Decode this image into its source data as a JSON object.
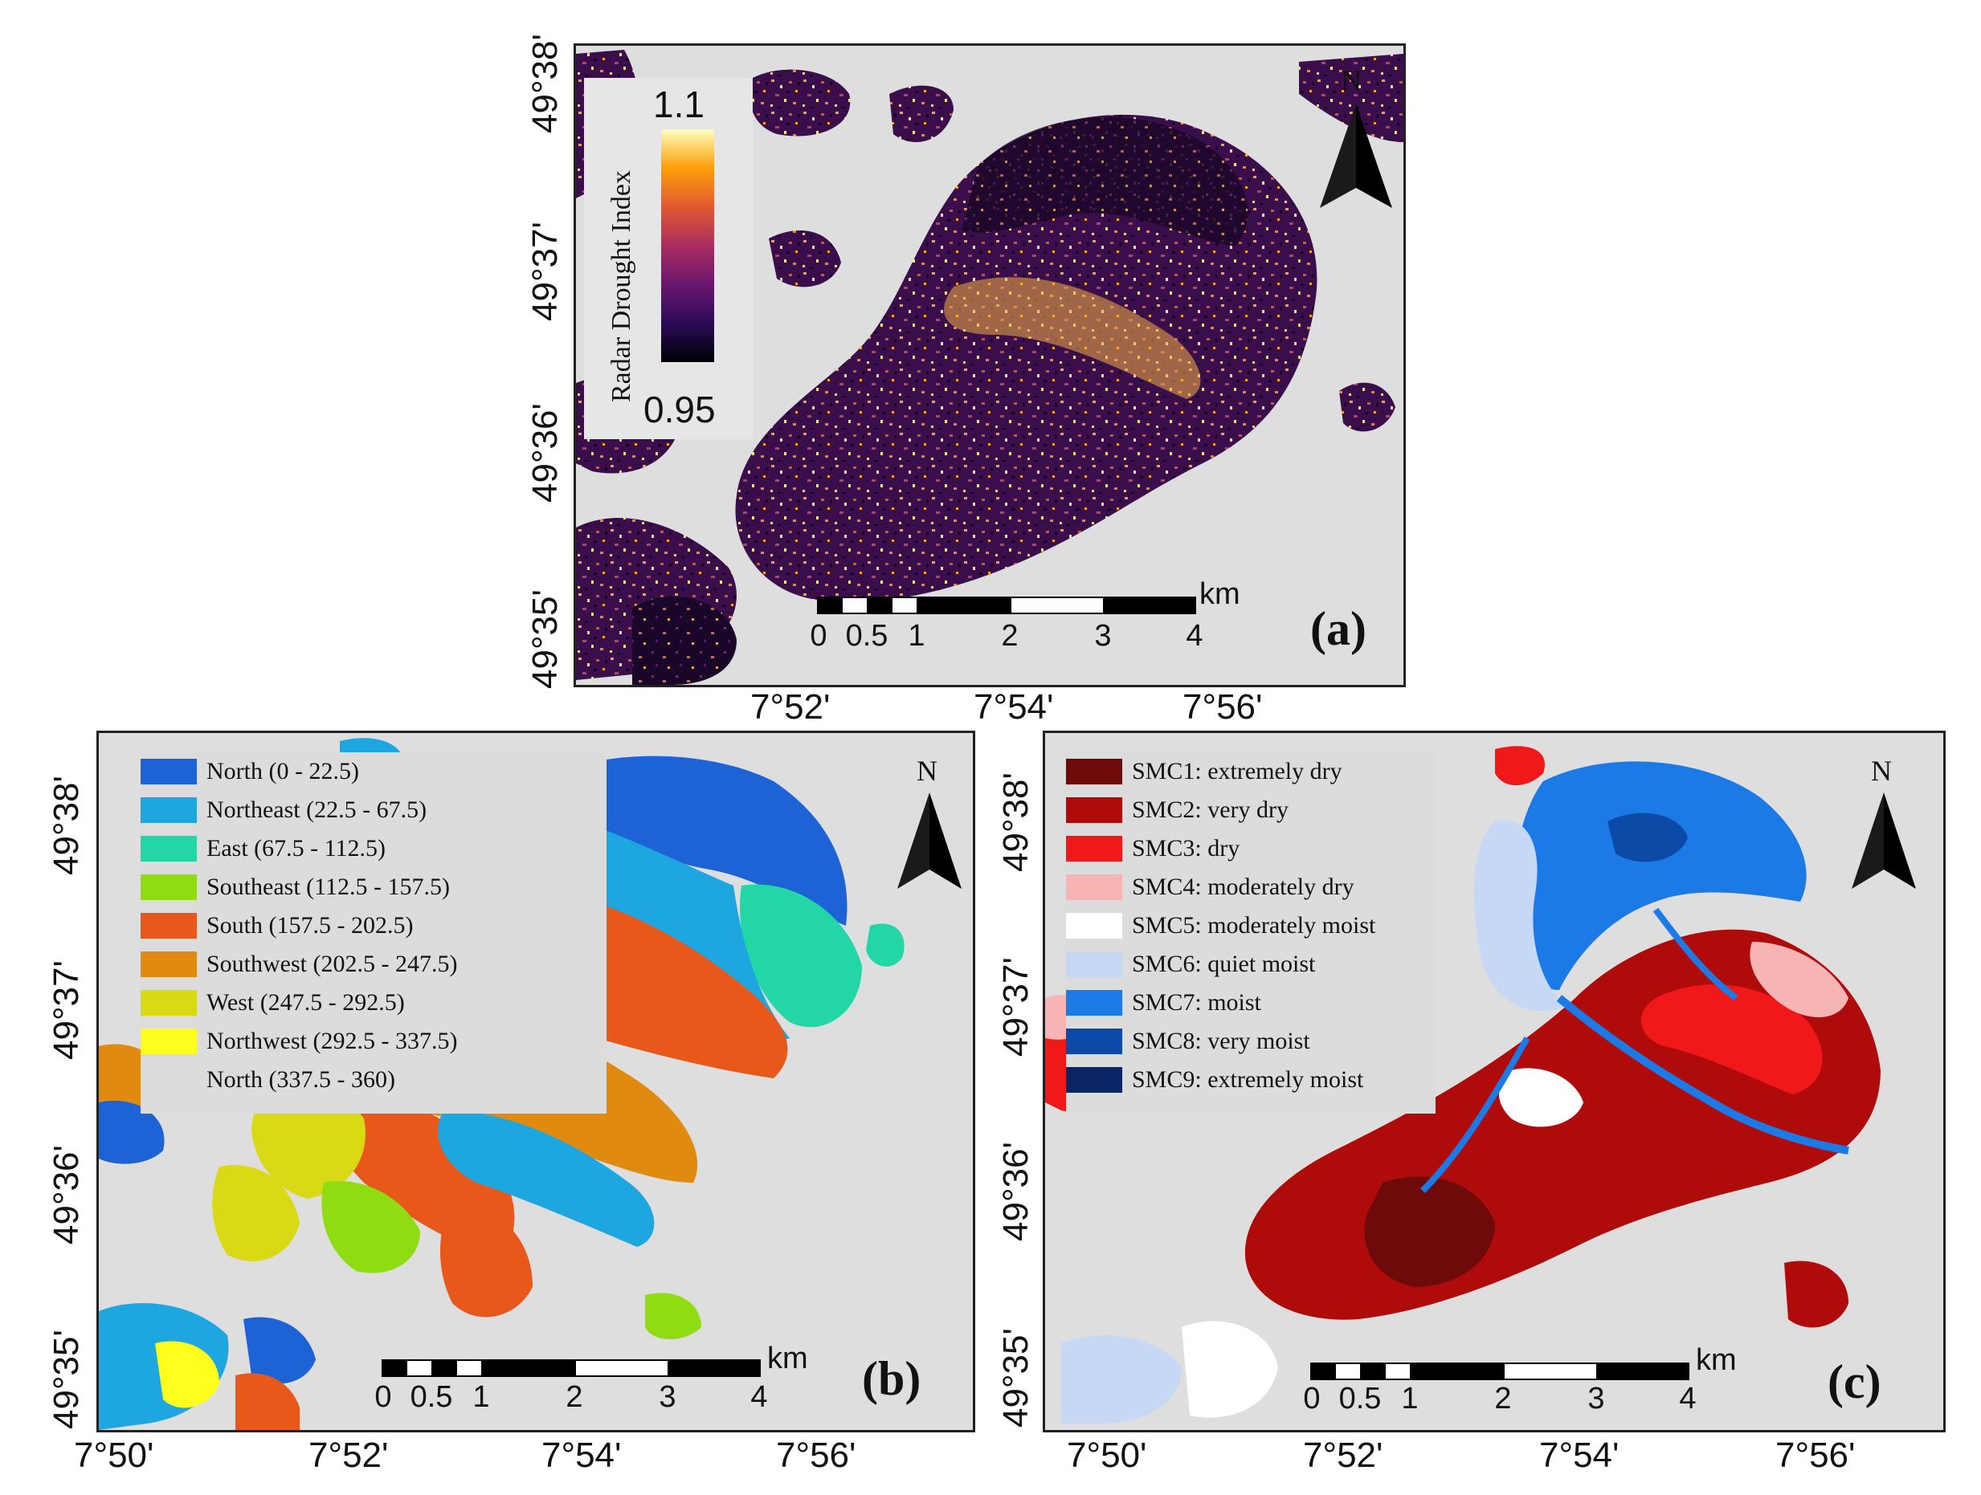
{
  "panel_a": {
    "label": "(a)",
    "north": "N",
    "colorbar": {
      "title": "Radar Drought Index",
      "max": "1.1",
      "min": "0.95",
      "colors": [
        "#fcfdbf",
        "#fc9f07",
        "#e35932",
        "#a82e5f",
        "#6a176e",
        "#2b0b56",
        "#000004"
      ]
    },
    "lat_ticks": [
      "49°38'",
      "49°37'",
      "49°36'",
      "49°35'"
    ],
    "lon_ticks": [
      "7°52'",
      "7°54'",
      "7°56'"
    ],
    "scalebar": {
      "labels": [
        "0",
        "0.5",
        "1",
        "2",
        "3",
        "4"
      ],
      "unit": "km"
    }
  },
  "panel_b": {
    "label": "(b)",
    "north": "N",
    "legend": [
      {
        "label": "North (0 - 22.5)",
        "color": "#1e63d6"
      },
      {
        "label": "Northeast (22.5 - 67.5)",
        "color": "#1ea6e0"
      },
      {
        "label": "East (67.5 - 112.5)",
        "color": "#22d6a6"
      },
      {
        "label": "Southeast (112.5 - 157.5)",
        "color": "#8fdc12"
      },
      {
        "label": "South (157.5 - 202.5)",
        "color": "#e8581a"
      },
      {
        "label": "Southwest (202.5 - 247.5)",
        "color": "#e08a10"
      },
      {
        "label": "West (247.5 - 292.5)",
        "color": "#d9d915"
      },
      {
        "label": "Northwest (292.5 - 337.5)",
        "color": "#ffff1e"
      },
      {
        "label": "North (337.5 - 360)",
        "color": "#dcdcdc"
      }
    ],
    "lat_ticks": [
      "49°38'",
      "49°37'",
      "49°36'",
      "49°35'"
    ],
    "lon_ticks": [
      "7°50'",
      "7°52'",
      "7°54'",
      "7°56'"
    ],
    "scalebar": {
      "labels": [
        "0",
        "0.5",
        "1",
        "2",
        "3",
        "4"
      ],
      "unit": "km"
    }
  },
  "panel_c": {
    "label": "(c)",
    "north": "N",
    "legend": [
      {
        "label": "SMC1: extremely dry",
        "color": "#6e0a0a"
      },
      {
        "label": "SMC2: very dry",
        "color": "#b00b0b"
      },
      {
        "label": "SMC3: dry",
        "color": "#f01818"
      },
      {
        "label": "SMC4: moderately dry",
        "color": "#f7b4b4"
      },
      {
        "label": "SMC5: moderately moist",
        "color": "#ffffff"
      },
      {
        "label": "SMC6: quiet moist",
        "color": "#c6d8f4"
      },
      {
        "label": "SMC7: moist",
        "color": "#1c7ae6"
      },
      {
        "label": "SMC8: very moist",
        "color": "#0b4aa6"
      },
      {
        "label": "SMC9: extremely moist",
        "color": "#0a2566"
      }
    ],
    "lat_ticks": [
      "49°38'",
      "49°37'",
      "49°36'",
      "49°35'"
    ],
    "lon_ticks": [
      "7°50'",
      "7°52'",
      "7°54'",
      "7°56'"
    ],
    "scalebar": {
      "labels": [
        "0",
        "0.5",
        "1",
        "2",
        "3",
        "4"
      ],
      "unit": "km"
    }
  }
}
